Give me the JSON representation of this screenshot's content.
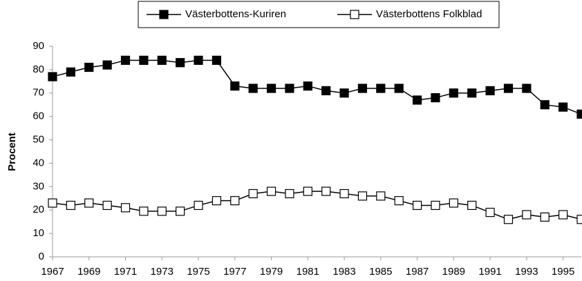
{
  "chart_data": {
    "type": "line",
    "y_label": "Procent",
    "x": [
      1967,
      1968,
      1969,
      1970,
      1971,
      1972,
      1973,
      1974,
      1975,
      1976,
      1977,
      1978,
      1979,
      1980,
      1981,
      1982,
      1983,
      1984,
      1985,
      1986,
      1987,
      1988,
      1989,
      1990,
      1991,
      1992,
      1993,
      1994,
      1995,
      1996
    ],
    "series": [
      {
        "name": "Västerbottens-Kuriren",
        "color": "#000000",
        "marker_fill": "#000000",
        "values": [
          77,
          79,
          81,
          82,
          84,
          84,
          84,
          83,
          84,
          84,
          73,
          72,
          72,
          72,
          73,
          71,
          70,
          72,
          72,
          72,
          67,
          68,
          70,
          70,
          71,
          72,
          72,
          65,
          64,
          61
        ]
      },
      {
        "name": "Västerbottens Folkblad",
        "color": "#000000",
        "marker_fill": "#ffffff",
        "values": [
          23,
          22,
          23,
          22,
          21,
          19.5,
          19.5,
          19.5,
          22,
          24,
          24,
          27,
          28,
          27,
          28,
          28,
          27,
          26,
          26,
          24,
          22,
          22,
          23,
          22,
          19,
          16,
          18,
          17,
          18,
          16
        ]
      }
    ],
    "xlim": [
      1967,
      1996
    ],
    "xticks": [
      1967,
      1969,
      1971,
      1973,
      1975,
      1977,
      1979,
      1981,
      1983,
      1985,
      1987,
      1989,
      1991,
      1993,
      1995
    ],
    "ylim": [
      0,
      90
    ],
    "yticks": [
      0,
      10,
      20,
      30,
      40,
      50,
      60,
      70,
      80,
      90
    ],
    "grid": false,
    "legend": "top"
  }
}
